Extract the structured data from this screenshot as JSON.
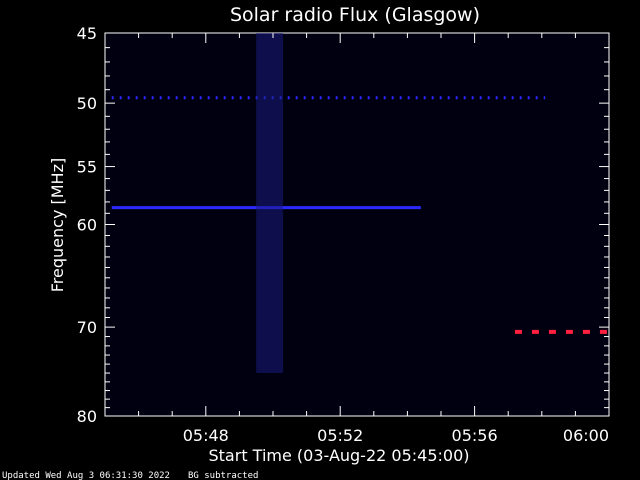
{
  "chart_data": {
    "type": "heatmap",
    "title": "Solar radio Flux (Glasgow)",
    "xlabel": "Start Time (03-Aug-22 05:45:00)",
    "ylabel": "Frequency [MHz]",
    "x_range_minutes": [
      0,
      15
    ],
    "x_ticks": [
      {
        "minute": 3,
        "label": "05:48"
      },
      {
        "minute": 7,
        "label": "05:52"
      },
      {
        "minute": 11,
        "label": "05:56"
      },
      {
        "minute": 15,
        "label": "06:00"
      }
    ],
    "y_range_mhz": [
      45,
      80
    ],
    "y_scale": "log",
    "y_ticks": [
      45,
      50,
      55,
      60,
      70,
      80
    ],
    "background_color": "#000010",
    "features": [
      {
        "kind": "dotted-line",
        "freq": 49.6,
        "start_min": 0.2,
        "end_min": 13.1,
        "color": "#2a2aff"
      },
      {
        "kind": "line",
        "freq": 58.5,
        "start_min": 0.2,
        "end_min": 9.4,
        "color": "#2a2aff"
      },
      {
        "kind": "vertical-band",
        "start_min": 4.5,
        "end_min": 5.3,
        "freq_from": 45,
        "freq_to": 75,
        "color": "#1a1a80"
      },
      {
        "kind": "dashed-line",
        "freq": 70.5,
        "start_min": 12.2,
        "end_min": 15,
        "color": "#ff2040"
      }
    ],
    "grid": false,
    "legend": "none"
  },
  "footer": {
    "updated": "Updated Wed Aug  3 06:31:30 2022",
    "note": "BG subtracted"
  }
}
